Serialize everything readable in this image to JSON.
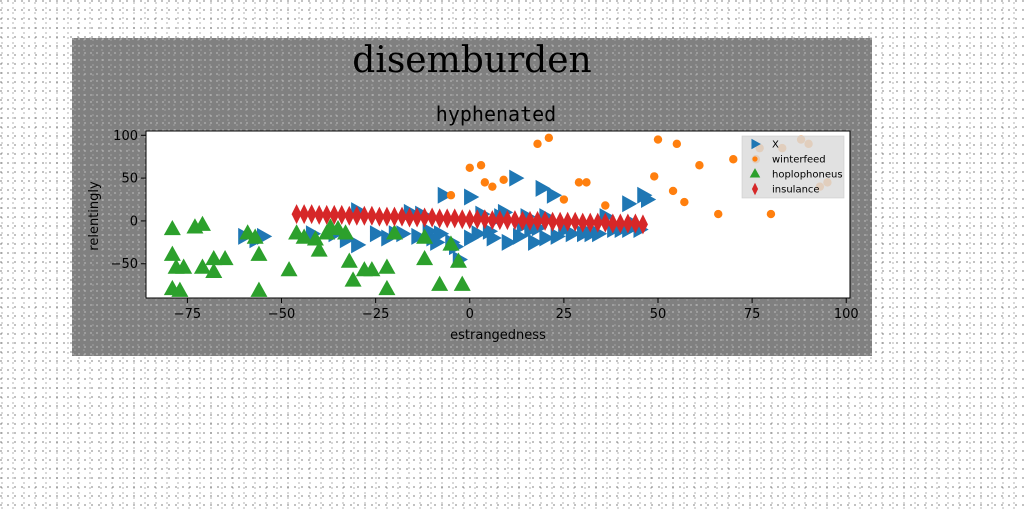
{
  "figure_title": "disemburden",
  "chart_data": {
    "type": "scatter",
    "title": "hyphenated",
    "xlabel": "estrangedness",
    "ylabel": "relentingly",
    "xlim": [
      -86,
      101
    ],
    "ylim": [
      -90,
      105
    ],
    "xticks": [
      -75,
      -50,
      -25,
      0,
      25,
      50,
      75,
      100
    ],
    "yticks": [
      100,
      50,
      0,
      -50
    ],
    "grid": false,
    "legend_position": "top-right",
    "series": [
      {
        "name": "X",
        "marker": "triangle-right",
        "color": "#1f77b4",
        "points": [
          [
            -60,
            -18
          ],
          [
            -57,
            -22
          ],
          [
            -55,
            -18
          ],
          [
            -42,
            -15
          ],
          [
            -36,
            -15
          ],
          [
            -33,
            -22
          ],
          [
            -30,
            -28
          ],
          [
            -30,
            12
          ],
          [
            -25,
            -15
          ],
          [
            -22,
            -20
          ],
          [
            -20,
            -15
          ],
          [
            -18,
            -15
          ],
          [
            -16,
            10
          ],
          [
            -14,
            -18
          ],
          [
            -13,
            8
          ],
          [
            -11,
            -12
          ],
          [
            -10,
            -20
          ],
          [
            -9,
            -25
          ],
          [
            -8,
            -15
          ],
          [
            -7,
            30
          ],
          [
            -5,
            -25
          ],
          [
            -4,
            -30
          ],
          [
            -3,
            -45
          ],
          [
            0,
            28
          ],
          [
            0,
            -20
          ],
          [
            2,
            -15
          ],
          [
            3,
            8
          ],
          [
            5,
            -12
          ],
          [
            6,
            -20
          ],
          [
            8,
            5
          ],
          [
            9,
            10
          ],
          [
            10,
            -25
          ],
          [
            12,
            50
          ],
          [
            13,
            -18
          ],
          [
            14,
            -5
          ],
          [
            15,
            5
          ],
          [
            16,
            -10
          ],
          [
            17,
            -25
          ],
          [
            18,
            -8
          ],
          [
            19,
            38
          ],
          [
            20,
            5
          ],
          [
            20,
            -20
          ],
          [
            22,
            30
          ],
          [
            23,
            -18
          ],
          [
            25,
            -10
          ],
          [
            27,
            -15
          ],
          [
            30,
            -15
          ],
          [
            32,
            -15
          ],
          [
            34,
            -15
          ],
          [
            36,
            5
          ],
          [
            38,
            -10
          ],
          [
            40,
            -10
          ],
          [
            42,
            -10
          ],
          [
            44,
            -5
          ],
          [
            45,
            -10
          ],
          [
            42,
            20
          ],
          [
            46,
            30
          ],
          [
            47,
            25
          ]
        ]
      },
      {
        "name": "winterfeed",
        "marker": "circle",
        "color": "#ff7f0e",
        "points": [
          [
            -5,
            30
          ],
          [
            0,
            62
          ],
          [
            3,
            65
          ],
          [
            4,
            45
          ],
          [
            6,
            40
          ],
          [
            9,
            48
          ],
          [
            18,
            90
          ],
          [
            21,
            97
          ],
          [
            25,
            25
          ],
          [
            29,
            45
          ],
          [
            31,
            45
          ],
          [
            36,
            18
          ],
          [
            49,
            52
          ],
          [
            50,
            95
          ],
          [
            54,
            35
          ],
          [
            55,
            90
          ],
          [
            57,
            22
          ],
          [
            61,
            65
          ],
          [
            66,
            8
          ],
          [
            70,
            72
          ],
          [
            76,
            72
          ],
          [
            77,
            85
          ],
          [
            80,
            8
          ],
          [
            83,
            85
          ],
          [
            88,
            95
          ],
          [
            90,
            90
          ],
          [
            93,
            40
          ],
          [
            95,
            45
          ]
        ]
      },
      {
        "name": "hoplophoneus",
        "marker": "triangle-up",
        "color": "#2ca02c",
        "points": [
          [
            -79,
            -10
          ],
          [
            -79,
            -40
          ],
          [
            -78,
            -55
          ],
          [
            -79,
            -80
          ],
          [
            -77,
            -82
          ],
          [
            -76,
            -55
          ],
          [
            -73,
            -8
          ],
          [
            -71,
            -5
          ],
          [
            -71,
            -55
          ],
          [
            -68,
            -60
          ],
          [
            -68,
            -45
          ],
          [
            -65,
            -45
          ],
          [
            -59,
            -15
          ],
          [
            -57,
            -20
          ],
          [
            -56,
            -40
          ],
          [
            -56,
            -82
          ],
          [
            -48,
            -58
          ],
          [
            -46,
            -15
          ],
          [
            -44,
            -20
          ],
          [
            -41,
            -22
          ],
          [
            -40,
            -35
          ],
          [
            -38,
            -15
          ],
          [
            -37,
            -8
          ],
          [
            -35,
            -10
          ],
          [
            -33,
            -15
          ],
          [
            -32,
            -48
          ],
          [
            -31,
            -70
          ],
          [
            -28,
            -58
          ],
          [
            -26,
            -58
          ],
          [
            -22,
            -55
          ],
          [
            -22,
            -80
          ],
          [
            -20,
            -15
          ],
          [
            -12,
            -20
          ],
          [
            -12,
            -45
          ],
          [
            -8,
            -75
          ],
          [
            -5,
            -28
          ],
          [
            -3,
            -48
          ],
          [
            -2,
            -75
          ]
        ]
      },
      {
        "name": "insulance",
        "marker": "thin-diamond",
        "color": "#d62728",
        "points": [
          [
            -46,
            8
          ],
          [
            -44,
            8
          ],
          [
            -42,
            8
          ],
          [
            -40,
            7
          ],
          [
            -38,
            7
          ],
          [
            -36,
            7
          ],
          [
            -34,
            7
          ],
          [
            -32,
            6
          ],
          [
            -30,
            6
          ],
          [
            -28,
            6
          ],
          [
            -26,
            6
          ],
          [
            -24,
            5
          ],
          [
            -22,
            5
          ],
          [
            -20,
            5
          ],
          [
            -18,
            5
          ],
          [
            -16,
            4
          ],
          [
            -14,
            4
          ],
          [
            -12,
            4
          ],
          [
            -10,
            4
          ],
          [
            -8,
            3
          ],
          [
            -6,
            3
          ],
          [
            -4,
            3
          ],
          [
            -2,
            2
          ],
          [
            0,
            2
          ],
          [
            2,
            2
          ],
          [
            4,
            2
          ],
          [
            6,
            1
          ],
          [
            8,
            1
          ],
          [
            10,
            1
          ],
          [
            12,
            1
          ],
          [
            14,
            0
          ],
          [
            16,
            0
          ],
          [
            18,
            0
          ],
          [
            20,
            0
          ],
          [
            22,
            -1
          ],
          [
            24,
            -1
          ],
          [
            26,
            -1
          ],
          [
            28,
            -1
          ],
          [
            30,
            -2
          ],
          [
            32,
            -2
          ],
          [
            34,
            -2
          ],
          [
            36,
            -2
          ],
          [
            38,
            -3
          ],
          [
            40,
            -3
          ],
          [
            42,
            -3
          ],
          [
            44,
            -3
          ],
          [
            46,
            -4
          ]
        ]
      }
    ]
  }
}
